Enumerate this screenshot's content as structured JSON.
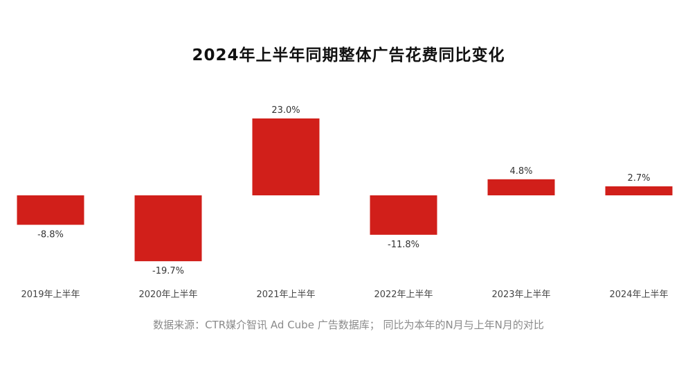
{
  "title": "2024年上半年同期整体广告花费同比变化",
  "source": "数据来源：CTR媒介智讯 Ad Cube 广告数据库； 同比为本年的N月与上年N月的对比",
  "colors": {
    "bar": "#d11f1a",
    "label": "#333333",
    "axis_text": "#444444"
  },
  "chart_data": {
    "type": "bar",
    "categories": [
      "2019年上半年",
      "2020年上半年",
      "2021年上半年",
      "2022年上半年",
      "2023年上半年",
      "2024年上半年"
    ],
    "values": [
      -8.8,
      -19.7,
      23.0,
      -11.8,
      4.8,
      2.7
    ],
    "value_labels": [
      "-8.8%",
      "-19.7%",
      "23.0%",
      "-11.8%",
      "4.8%",
      "2.7%"
    ],
    "title": "2024年上半年同期整体广告花费同比变化",
    "xlabel": "",
    "ylabel": "",
    "unit": "%",
    "ylim": [
      -20,
      23
    ],
    "grid": false,
    "legend": "none"
  }
}
